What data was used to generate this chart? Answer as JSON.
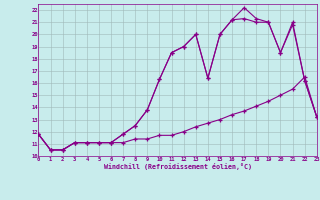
{
  "xlabel": "Windchill (Refroidissement éolien,°C)",
  "xlim": [
    0,
    23
  ],
  "ylim": [
    10,
    22.5
  ],
  "xticks": [
    0,
    1,
    2,
    3,
    4,
    5,
    6,
    7,
    8,
    9,
    10,
    11,
    12,
    13,
    14,
    15,
    16,
    17,
    18,
    19,
    20,
    21,
    22,
    23
  ],
  "yticks": [
    10,
    11,
    12,
    13,
    14,
    15,
    16,
    17,
    18,
    19,
    20,
    21,
    22
  ],
  "background_color": "#c8ecec",
  "grid_color": "#a0b8b8",
  "line_color": "#880088",
  "line1_x": [
    0,
    1,
    2,
    3,
    4,
    5,
    6,
    7,
    8,
    9,
    10,
    11,
    12,
    13,
    14,
    15,
    16,
    17,
    18,
    19,
    20,
    21,
    22,
    23
  ],
  "line1_y": [
    11.8,
    10.5,
    10.5,
    11.1,
    11.1,
    11.1,
    11.1,
    11.1,
    11.4,
    11.4,
    11.7,
    11.7,
    12.0,
    12.4,
    12.7,
    13.0,
    13.4,
    13.7,
    14.1,
    14.5,
    15.0,
    15.5,
    16.5,
    13.2
  ],
  "line2_x": [
    0,
    1,
    2,
    3,
    4,
    5,
    6,
    7,
    8,
    9,
    10,
    11,
    12,
    13,
    14,
    15,
    16,
    17,
    18,
    19,
    20,
    21,
    22,
    23
  ],
  "line2_y": [
    11.8,
    10.5,
    10.5,
    11.1,
    11.1,
    11.1,
    11.1,
    11.8,
    12.5,
    13.8,
    16.3,
    18.5,
    19.0,
    20.0,
    16.4,
    20.0,
    21.2,
    22.2,
    21.3,
    21.0,
    18.5,
    21.0,
    16.2,
    13.2
  ],
  "line3_x": [
    0,
    1,
    2,
    3,
    4,
    5,
    6,
    7,
    8,
    9,
    10,
    11,
    12,
    13,
    14,
    15,
    16,
    17,
    18,
    19,
    20,
    21,
    22,
    23
  ],
  "line3_y": [
    11.8,
    10.5,
    10.5,
    11.1,
    11.1,
    11.1,
    11.1,
    11.8,
    12.5,
    13.8,
    16.3,
    18.5,
    19.0,
    20.0,
    16.4,
    20.0,
    21.2,
    21.3,
    21.0,
    21.0,
    18.5,
    20.8,
    16.2,
    13.2
  ]
}
